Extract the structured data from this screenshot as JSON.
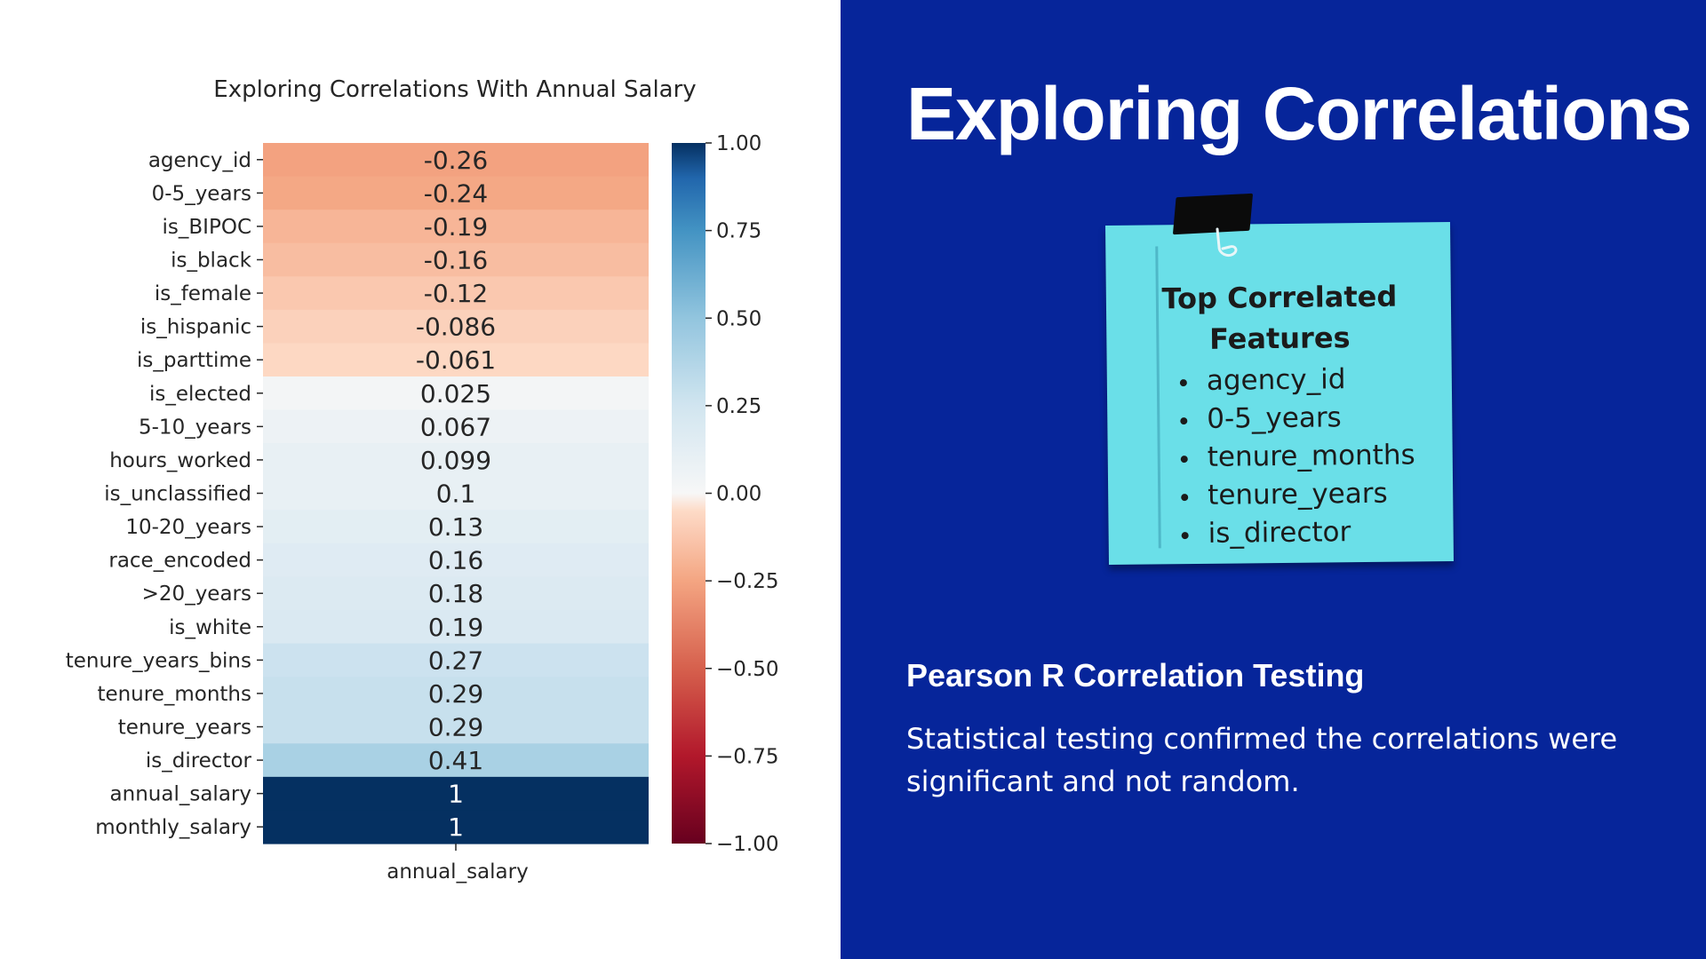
{
  "slide": {
    "title": "Exploring Correlations",
    "note": {
      "title": "Top Correlated Features",
      "items": [
        "agency_id",
        "0-5_years",
        "tenure_months",
        "tenure_years",
        "is_director"
      ]
    },
    "section_heading": "Pearson R Correlation Testing",
    "section_body": "Statistical testing confirmed the correlations were significant and not random."
  },
  "colors": {
    "slide_background": "#06259a",
    "note_background": "#6adfe8",
    "colormap": "RdBu"
  },
  "chart_data": {
    "type": "heatmap",
    "title": "Exploring Correlations With Annual Salary",
    "columns": [
      "annual_salary"
    ],
    "rows": [
      "agency_id",
      "0-5_years",
      "is_BIPOC",
      "is_black",
      "is_female",
      "is_hispanic",
      "is_parttime",
      "is_elected",
      "5-10_years",
      "hours_worked",
      "is_unclassified",
      "10-20_years",
      "race_encoded",
      ">20_years",
      "is_white",
      "tenure_years_bins",
      "tenure_months",
      "tenure_years",
      "is_director",
      "annual_salary",
      "monthly_salary"
    ],
    "values": [
      -0.26,
      -0.24,
      -0.19,
      -0.16,
      -0.12,
      -0.086,
      -0.061,
      0.025,
      0.067,
      0.099,
      0.1,
      0.13,
      0.16,
      0.18,
      0.19,
      0.27,
      0.29,
      0.29,
      0.41,
      1,
      1
    ],
    "value_labels": [
      "-0.26",
      "-0.24",
      "-0.19",
      "-0.16",
      "-0.12",
      "-0.086",
      "-0.061",
      "0.025",
      "0.067",
      "0.099",
      "0.1",
      "0.13",
      "0.16",
      "0.18",
      "0.19",
      "0.27",
      "0.29",
      "0.29",
      "0.41",
      "1",
      "1"
    ],
    "colorbar": {
      "range": [
        -1,
        1
      ],
      "ticks": [
        1,
        0.75,
        0.5,
        0.25,
        0,
        -0.25,
        -0.5,
        -0.75,
        -1
      ],
      "tick_labels": [
        "1.00",
        "0.75",
        "0.50",
        "0.25",
        "0.00",
        "−0.25",
        "−0.50",
        "−0.75",
        "−1.00"
      ]
    }
  }
}
